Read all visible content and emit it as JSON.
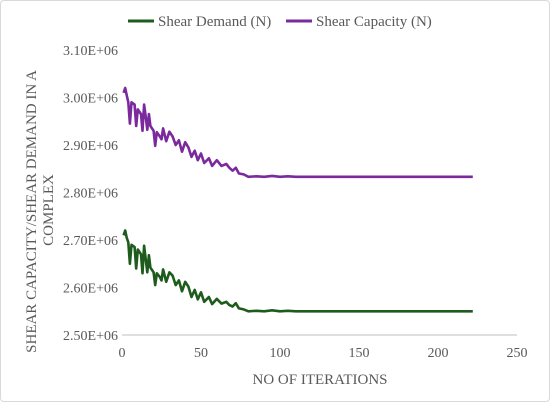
{
  "chart_data": {
    "type": "line",
    "title": "",
    "xlabel": "NO OF ITERATIONS",
    "ylabel_lines": [
      "SHEAR CAPACITY/SHEAR DEMAND IN A",
      "COMPLEX"
    ],
    "xlim": [
      0,
      250
    ],
    "ylim": [
      2500000,
      3100000
    ],
    "x_ticks": [
      0,
      50,
      100,
      150,
      200,
      250
    ],
    "x_tick_labels": [
      "0",
      "50",
      "100",
      "150",
      "200",
      "250"
    ],
    "y_ticks": [
      2500000,
      2600000,
      2700000,
      2800000,
      2900000,
      3000000,
      3100000
    ],
    "y_tick_labels": [
      "2.50E+06",
      "2.60E+06",
      "2.70E+06",
      "2.80E+06",
      "2.90E+06",
      "3.00E+06",
      "3.10E+06"
    ],
    "grid": false,
    "legend_position": "top",
    "series": [
      {
        "name": "Shear Demand (N)",
        "color": "#1e5c1e",
        "points": [
          [
            1,
            2710000
          ],
          [
            2,
            2720000
          ],
          [
            3,
            2705000
          ],
          [
            4,
            2695000
          ],
          [
            5,
            2650000
          ],
          [
            6,
            2690000
          ],
          [
            8,
            2685000
          ],
          [
            9,
            2640000
          ],
          [
            10,
            2680000
          ],
          [
            12,
            2670000
          ],
          [
            13,
            2630000
          ],
          [
            14,
            2688000
          ],
          [
            15,
            2660000
          ],
          [
            16,
            2632000
          ],
          [
            17,
            2668000
          ],
          [
            18,
            2642000
          ],
          [
            20,
            2632000
          ],
          [
            21,
            2605000
          ],
          [
            22,
            2630000
          ],
          [
            24,
            2622000
          ],
          [
            25,
            2615000
          ],
          [
            26,
            2638000
          ],
          [
            28,
            2612000
          ],
          [
            30,
            2632000
          ],
          [
            32,
            2625000
          ],
          [
            34,
            2605000
          ],
          [
            36,
            2615000
          ],
          [
            38,
            2592000
          ],
          [
            40,
            2612000
          ],
          [
            42,
            2602000
          ],
          [
            44,
            2580000
          ],
          [
            46,
            2595000
          ],
          [
            48,
            2575000
          ],
          [
            50,
            2590000
          ],
          [
            52,
            2570000
          ],
          [
            55,
            2580000
          ],
          [
            57,
            2565000
          ],
          [
            60,
            2576000
          ],
          [
            63,
            2566000
          ],
          [
            66,
            2570000
          ],
          [
            68,
            2563000
          ],
          [
            70,
            2560000
          ],
          [
            72,
            2567000
          ],
          [
            74,
            2556000
          ],
          [
            77,
            2554000
          ],
          [
            80,
            2550000
          ],
          [
            85,
            2551000
          ],
          [
            90,
            2550000
          ],
          [
            95,
            2552000
          ],
          [
            100,
            2550000
          ],
          [
            105,
            2551000
          ],
          [
            110,
            2550000
          ],
          [
            150,
            2550000
          ],
          [
            200,
            2550000
          ],
          [
            222,
            2550000
          ]
        ]
      },
      {
        "name": "Shear Capacity (N)",
        "color": "#7b2a9e",
        "points": [
          [
            1,
            3010000
          ],
          [
            2,
            3020000
          ],
          [
            3,
            3005000
          ],
          [
            4,
            2990000
          ],
          [
            5,
            2945000
          ],
          [
            6,
            2990000
          ],
          [
            8,
            2985000
          ],
          [
            9,
            2940000
          ],
          [
            10,
            2975000
          ],
          [
            12,
            2965000
          ],
          [
            13,
            2930000
          ],
          [
            14,
            2985000
          ],
          [
            15,
            2960000
          ],
          [
            16,
            2932000
          ],
          [
            17,
            2965000
          ],
          [
            18,
            2940000
          ],
          [
            20,
            2930000
          ],
          [
            21,
            2898000
          ],
          [
            22,
            2927000
          ],
          [
            24,
            2918000
          ],
          [
            25,
            2912000
          ],
          [
            26,
            2935000
          ],
          [
            28,
            2908000
          ],
          [
            30,
            2928000
          ],
          [
            32,
            2918000
          ],
          [
            34,
            2900000
          ],
          [
            36,
            2910000
          ],
          [
            38,
            2886000
          ],
          [
            40,
            2906000
          ],
          [
            42,
            2895000
          ],
          [
            44,
            2875000
          ],
          [
            46,
            2888000
          ],
          [
            48,
            2868000
          ],
          [
            50,
            2882000
          ],
          [
            52,
            2862000
          ],
          [
            55,
            2872000
          ],
          [
            57,
            2856000
          ],
          [
            60,
            2868000
          ],
          [
            63,
            2856000
          ],
          [
            66,
            2860000
          ],
          [
            68,
            2852000
          ],
          [
            70,
            2846000
          ],
          [
            72,
            2852000
          ],
          [
            74,
            2840000
          ],
          [
            77,
            2838000
          ],
          [
            80,
            2833000
          ],
          [
            85,
            2834000
          ],
          [
            90,
            2833000
          ],
          [
            95,
            2835000
          ],
          [
            100,
            2833000
          ],
          [
            105,
            2834000
          ],
          [
            110,
            2833000
          ],
          [
            150,
            2833000
          ],
          [
            200,
            2833000
          ],
          [
            222,
            2833000
          ]
        ]
      }
    ]
  }
}
